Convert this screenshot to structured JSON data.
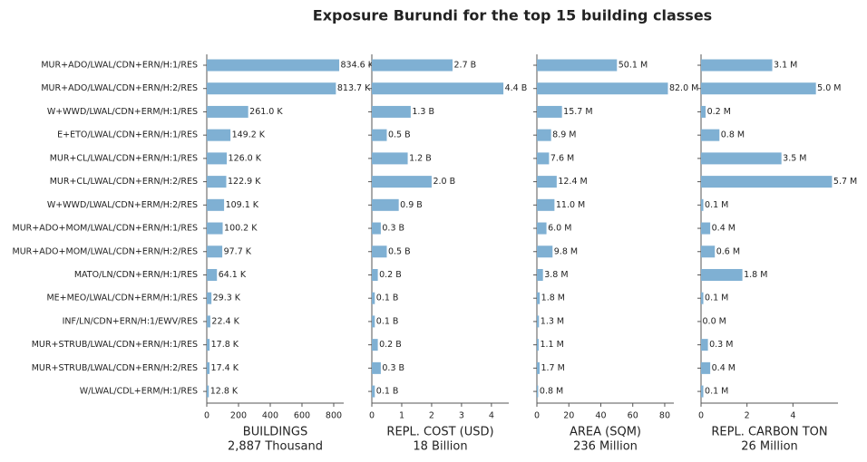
{
  "title": "Exposure Burundi for the top 15 building classes",
  "chart_data": [
    {
      "type": "barh",
      "xlabel": "BUILDINGS",
      "xlabel_note": "2,887 Thousand",
      "color": "#7fb0d3",
      "categories": [
        "MUR+ADO/LWAL/CDN+ERN/H:1/RES",
        "MUR+ADO/LWAL/CDN+ERN/H:2/RES",
        "W+WWD/LWAL/CDN+ERM/H:1/RES",
        "E+ETO/LWAL/CDN+ERN/H:1/RES",
        "MUR+CL/LWAL/CDN+ERN/H:1/RES",
        "MUR+CL/LWAL/CDN+ERN/H:2/RES",
        "W+WWD/LWAL/CDN+ERM/H:2/RES",
        "MUR+ADO+MOM/LWAL/CDN+ERN/H:1/RES",
        "MUR+ADO+MOM/LWAL/CDN+ERN/H:2/RES",
        "MATO/LN/CDN+ERN/H:1/RES",
        "ME+MEO/LWAL/CDN+ERM/H:1/RES",
        "INF/LN/CDN+ERN/H:1/EWV/RES",
        "MUR+STRUB/LWAL/CDN+ERN/H:1/RES",
        "MUR+STRUB/LWAL/CDN+ERN/H:2/RES",
        "W/LWAL/CDL+ERM/H:1/RES"
      ],
      "values": [
        834.6,
        813.7,
        261.0,
        149.2,
        126.0,
        122.9,
        109.1,
        100.2,
        97.7,
        64.1,
        29.3,
        22.4,
        17.8,
        17.4,
        12.8
      ],
      "value_labels": [
        "834.6 K",
        "813.7 K",
        "261.0 K",
        "149.2 K",
        "126.0 K",
        "122.9 K",
        "109.1 K",
        "100.2 K",
        "97.7 K",
        "64.1 K",
        "29.3 K",
        "22.4 K",
        "17.8 K",
        "17.4 K",
        "12.8 K"
      ],
      "xlim": [
        0,
        863
      ],
      "xticks": [
        0,
        200,
        400,
        600,
        800
      ]
    },
    {
      "type": "barh",
      "xlabel": "REPL. COST (USD)",
      "xlabel_note": "18 Billion",
      "color": "#7fb0d3",
      "values": [
        2.7,
        4.4,
        1.3,
        0.5,
        1.2,
        2.0,
        0.9,
        0.3,
        0.5,
        0.2,
        0.1,
        0.1,
        0.2,
        0.3,
        0.1
      ],
      "value_labels": [
        "2.7 B",
        "4.4 B",
        "1.3 B",
        "0.5 B",
        "1.2 B",
        "2.0 B",
        "0.9 B",
        "0.3 B",
        "0.5 B",
        "0.2 B",
        "0.1 B",
        "0.1 B",
        "0.2 B",
        "0.3 B",
        "0.1 B"
      ],
      "xlim": [
        0,
        4.58
      ],
      "xticks": [
        0,
        1,
        2,
        3,
        4
      ]
    },
    {
      "type": "barh",
      "xlabel": "AREA (SQM)",
      "xlabel_note": "236 Million",
      "color": "#7fb0d3",
      "values": [
        50.1,
        82.0,
        15.7,
        8.9,
        7.6,
        12.4,
        11.0,
        6.0,
        9.8,
        3.8,
        1.8,
        1.3,
        1.1,
        1.7,
        0.8
      ],
      "value_labels": [
        "50.1 M",
        "82.0 M",
        "15.7 M",
        "8.9 M",
        "7.6 M",
        "12.4 M",
        "11.0 M",
        "6.0 M",
        "9.8 M",
        "3.8 M",
        "1.8 M",
        "1.3 M",
        "1.1 M",
        "1.7 M",
        "0.8 M"
      ],
      "xlim": [
        0,
        85.7
      ],
      "xticks": [
        0,
        20,
        40,
        60,
        80
      ]
    },
    {
      "type": "barh",
      "xlabel": "REPL. CARBON TON",
      "xlabel_note": "26 Million",
      "color": "#7fb0d3",
      "values": [
        3.1,
        5.0,
        0.2,
        0.8,
        3.5,
        5.7,
        0.1,
        0.4,
        0.6,
        1.8,
        0.1,
        0.0,
        0.3,
        0.4,
        0.1
      ],
      "value_labels": [
        "3.1 M",
        "5.0 M",
        "0.2 M",
        "0.8 M",
        "3.5 M",
        "5.7 M",
        "0.1 M",
        "0.4 M",
        "0.6 M",
        "1.8 M",
        "0.1 M",
        "0.0 M",
        "0.3 M",
        "0.4 M",
        "0.1 M"
      ],
      "xlim": [
        0,
        5.96
      ],
      "xticks": [
        0,
        2,
        4
      ]
    }
  ]
}
